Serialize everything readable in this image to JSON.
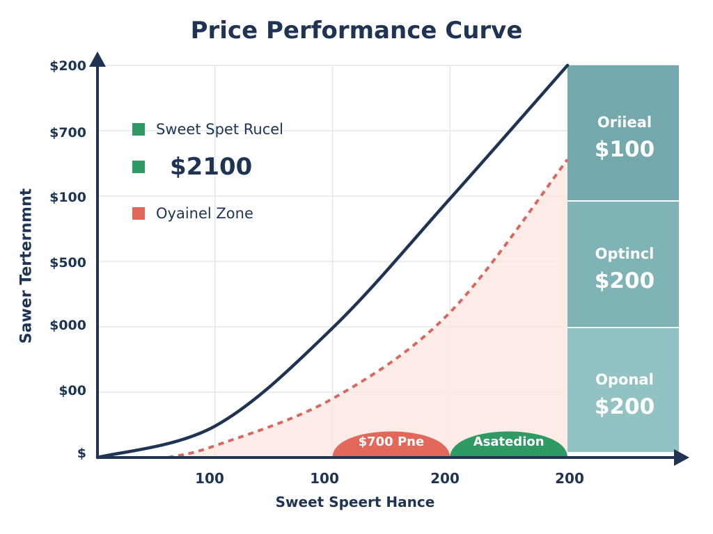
{
  "colors": {
    "text": "#1f3452",
    "curve": "#1f3452",
    "dashed": "#d8685e",
    "zone_fill": "#fbe7e3",
    "green": "#2f9a63",
    "red": "#e2685a",
    "panel_top": "#73a9ac",
    "panel_mid": "#7fb3b5",
    "panel_bottom": "#92c3c2",
    "grid": "#e3e7ea"
  },
  "chart_data": {
    "type": "line",
    "title": "Price Performance Curve",
    "xlabel": "Sweet Speert Hance",
    "ylabel": "Sawer Terternmnt",
    "x_ticks": [
      "100",
      "100",
      "200",
      "200"
    ],
    "y_ticks": [
      "$200",
      "$700",
      "$100",
      "$500",
      "$000",
      "$00",
      "$"
    ],
    "grid": true,
    "legend": [
      {
        "label": "Sweet Spet Rucel",
        "color": "#2f9a63"
      },
      {
        "label": "$2100",
        "color": "#2f9a63"
      },
      {
        "label": "Oyainel Zone",
        "color": "#e2685a"
      }
    ],
    "series": [
      {
        "style": "solid",
        "x": [
          0,
          1,
          2,
          3,
          4
        ],
        "y": [
          0,
          0.08,
          0.33,
          0.66,
          1.0
        ]
      },
      {
        "style": "dashed",
        "x": [
          0.6,
          1,
          2,
          3,
          4
        ],
        "y": [
          0,
          0.03,
          0.15,
          0.37,
          0.76
        ]
      }
    ],
    "xlim": [
      0,
      4
    ],
    "ylim": [
      0,
      1
    ],
    "pills": [
      {
        "label": "$700 Pne",
        "color": "#e2685a"
      },
      {
        "label": "Asatedion",
        "color": "#2f9a63"
      }
    ],
    "panels": [
      {
        "label": "Oriieal",
        "value": "$100"
      },
      {
        "label": "Optincl",
        "value": "$200"
      },
      {
        "label": "Oponal",
        "value": "$200"
      }
    ]
  }
}
